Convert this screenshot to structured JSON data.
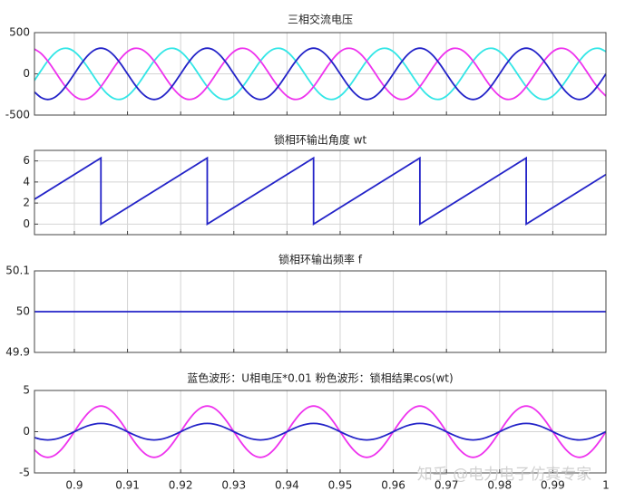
{
  "chart_data": [
    {
      "type": "line",
      "title": "三相交流电压",
      "x": [
        0.8925,
        0.89375,
        0.895,
        0.89625,
        0.8975,
        0.89875,
        0.9,
        0.90125,
        0.9025,
        0.90375,
        0.905,
        0.90625,
        0.9075,
        0.90875,
        0.91,
        0.91125,
        0.9125,
        0.91375,
        0.915,
        0.91625,
        0.9175,
        0.91875,
        0.92,
        0.92125,
        0.9225,
        0.92375,
        0.925,
        0.92625,
        0.9275,
        0.92875,
        0.93,
        0.93125,
        0.9325,
        0.93375,
        0.935,
        0.93625,
        0.9375,
        0.93875,
        0.94,
        0.94125,
        0.9425,
        0.94375,
        0.945,
        0.94625,
        0.9475,
        0.94875,
        0.95,
        0.95125,
        0.9525,
        0.95375,
        0.955,
        0.95625,
        0.9575,
        0.95875,
        0.96,
        0.96125,
        0.9625,
        0.96375,
        0.965,
        0.96625,
        0.9675,
        0.96875,
        0.97,
        0.97125,
        0.9725,
        0.97375,
        0.975,
        0.97625,
        0.9775,
        0.97875,
        0.98,
        0.98125,
        0.9825,
        0.98375,
        0.985,
        0.98625,
        0.9875,
        0.98875,
        0.99,
        0.99125,
        0.9925,
        0.99375,
        0.995,
        0.99625,
        0.9975,
        0.99875,
        1
      ],
      "series": [
        {
          "color": "#33e6e6",
          "values": [
            -80.5,
            40.6,
            155.5,
            246.7,
            300.4,
            308.3,
            269.3,
            189.3,
            80.5,
            -40.6,
            -155.5,
            -246.7,
            -300.4,
            -308.3,
            -269.3,
            -189.3,
            -80.5,
            40.6,
            155.5,
            246.7,
            300.4,
            308.3,
            269.3,
            189.3,
            80.5,
            -40.6,
            -155.5,
            -246.7,
            -300.4,
            -308.3,
            -269.3,
            -189.3,
            -80.5,
            40.6,
            155.5,
            246.7,
            300.4,
            308.3,
            269.3,
            189.3,
            80.5,
            -40.6,
            -155.5,
            -246.7,
            -300.4,
            -308.3,
            -269.3,
            -189.3,
            -80.5,
            40.6,
            155.5,
            246.7,
            300.4,
            308.3,
            269.3,
            189.3,
            80.5,
            -40.6,
            -155.5,
            -246.7,
            -300.4,
            -308.3,
            -269.3,
            -189.3,
            -80.5,
            40.6,
            155.5,
            246.7,
            300.4,
            308.3,
            269.3,
            189.3,
            80.5,
            -40.6,
            -155.5,
            -246.7,
            -300.4,
            -308.3,
            -269.3,
            -189.3,
            -80.5,
            40.6,
            155.5,
            246.7,
            300.4,
            308.3,
            269.3
          ]
        },
        {
          "color": "#ee33ee",
          "values": [
            300.4,
            246.7,
            155.5,
            40.6,
            -80.5,
            -189.3,
            -269.3,
            -308.3,
            -300.4,
            -246.7,
            -155.5,
            -40.6,
            80.5,
            189.3,
            269.3,
            308.3,
            300.4,
            246.7,
            155.5,
            40.6,
            -80.5,
            -189.3,
            -269.3,
            -308.3,
            -300.4,
            -246.7,
            -155.5,
            -40.6,
            80.5,
            189.3,
            269.3,
            308.3,
            300.4,
            246.7,
            155.5,
            40.6,
            -80.5,
            -189.3,
            -269.3,
            -308.3,
            -300.4,
            -246.7,
            -155.5,
            -40.6,
            80.5,
            189.3,
            269.3,
            308.3,
            300.4,
            246.7,
            155.5,
            40.6,
            -80.5,
            -189.3,
            -269.3,
            -308.3,
            -300.4,
            -246.7,
            -155.5,
            -40.6,
            80.5,
            189.3,
            269.3,
            308.3,
            300.4,
            246.7,
            155.5,
            40.6,
            -80.5,
            -189.3,
            -269.3,
            -308.3,
            -300.4,
            -246.7,
            -155.5,
            -40.6,
            80.5,
            189.3,
            269.3,
            308.3,
            300.4,
            246.7,
            155.5,
            40.6,
            -80.5,
            -189.3,
            -269.3
          ]
        },
        {
          "color": "#2323c8",
          "values": [
            -219.9,
            -287.3,
            -311,
            -287.3,
            -219.9,
            -119,
            0,
            119,
            219.9,
            287.3,
            311,
            287.3,
            219.9,
            119,
            0,
            -119,
            -219.9,
            -287.3,
            -311,
            -287.3,
            -219.9,
            -119,
            0,
            119,
            219.9,
            287.3,
            311,
            287.3,
            219.9,
            119,
            0,
            -119,
            -219.9,
            -287.3,
            -311,
            -287.3,
            -219.9,
            -119,
            0,
            119,
            219.9,
            287.3,
            311,
            287.3,
            219.9,
            119,
            0,
            -119,
            -219.9,
            -287.3,
            -311,
            -287.3,
            -219.9,
            -119,
            0,
            119,
            219.9,
            287.3,
            311,
            287.3,
            219.9,
            119,
            0,
            -119,
            -219.9,
            -287.3,
            -311,
            -287.3,
            -219.9,
            -119,
            0,
            119,
            219.9,
            287.3,
            311,
            287.3,
            219.9,
            119,
            0,
            -119,
            -219.9,
            -287.3,
            -311,
            -287.3,
            -219.9,
            -119,
            0
          ]
        }
      ],
      "xlim": [
        0.8925,
        1
      ],
      "ylim": [
        -500,
        500
      ],
      "xticks": [
        0.9,
        0.91,
        0.92,
        0.93,
        0.94,
        0.95,
        0.96,
        0.97,
        0.98,
        0.99,
        1
      ],
      "yticks": [
        -500,
        0,
        500
      ],
      "grid": true,
      "xticklabels": false
    },
    {
      "type": "line",
      "title": "锁相环输出角度 wt",
      "x": [
        0.8925,
        0.905,
        0.905,
        0.925,
        0.925,
        0.945,
        0.945,
        0.965,
        0.965,
        0.985,
        0.985,
        1
      ],
      "series": [
        {
          "color": "#2323c8",
          "values": [
            2.356,
            6.283,
            0,
            6.283,
            0,
            6.283,
            0,
            6.283,
            0,
            6.283,
            0,
            4.712
          ]
        }
      ],
      "xlim": [
        0.8925,
        1
      ],
      "ylim": [
        -1,
        7
      ],
      "xticks": [
        0.9,
        0.91,
        0.92,
        0.93,
        0.94,
        0.95,
        0.96,
        0.97,
        0.98,
        0.99,
        1
      ],
      "yticks": [
        0,
        2,
        4,
        6
      ],
      "grid": true,
      "xticklabels": false
    },
    {
      "type": "line",
      "title": "锁相环输出频率 f",
      "x": [
        0.8925,
        1
      ],
      "series": [
        {
          "color": "#2323c8",
          "values": [
            50,
            50
          ]
        }
      ],
      "xlim": [
        0.8925,
        1
      ],
      "ylim": [
        49.9,
        50.1
      ],
      "xticks": [
        0.9,
        0.91,
        0.92,
        0.93,
        0.94,
        0.95,
        0.96,
        0.97,
        0.98,
        0.99,
        1
      ],
      "yticks": [
        49.9,
        50,
        50.1
      ],
      "grid": true,
      "xticklabels": false
    },
    {
      "type": "line",
      "title": "蓝色波形：U相电压*0.01      粉色波形：锁相结果cos(wt)",
      "x": [
        0.8925,
        0.89375,
        0.895,
        0.89625,
        0.8975,
        0.89875,
        0.9,
        0.90125,
        0.9025,
        0.90375,
        0.905,
        0.90625,
        0.9075,
        0.90875,
        0.91,
        0.91125,
        0.9125,
        0.91375,
        0.915,
        0.91625,
        0.9175,
        0.91875,
        0.92,
        0.92125,
        0.9225,
        0.92375,
        0.925,
        0.92625,
        0.9275,
        0.92875,
        0.93,
        0.93125,
        0.9325,
        0.93375,
        0.935,
        0.93625,
        0.9375,
        0.93875,
        0.94,
        0.94125,
        0.9425,
        0.94375,
        0.945,
        0.94625,
        0.9475,
        0.94875,
        0.95,
        0.95125,
        0.9525,
        0.95375,
        0.955,
        0.95625,
        0.9575,
        0.95875,
        0.96,
        0.96125,
        0.9625,
        0.96375,
        0.965,
        0.96625,
        0.9675,
        0.96875,
        0.97,
        0.97125,
        0.9725,
        0.97375,
        0.975,
        0.97625,
        0.9775,
        0.97875,
        0.98,
        0.98125,
        0.9825,
        0.98375,
        0.985,
        0.98625,
        0.9875,
        0.98875,
        0.99,
        0.99125,
        0.9925,
        0.99375,
        0.995,
        0.99625,
        0.9975,
        0.99875,
        1
      ],
      "series": [
        {
          "color": "#ee33ee",
          "values": [
            -2.199,
            -2.873,
            -3.11,
            -2.873,
            -2.199,
            -1.19,
            0,
            1.19,
            2.199,
            2.873,
            3.11,
            2.873,
            2.199,
            1.19,
            0,
            -1.19,
            -2.199,
            -2.873,
            -3.11,
            -2.873,
            -2.199,
            -1.19,
            0,
            1.19,
            2.199,
            2.873,
            3.11,
            2.873,
            2.199,
            1.19,
            0,
            -1.19,
            -2.199,
            -2.873,
            -3.11,
            -2.873,
            -2.199,
            -1.19,
            0,
            1.19,
            2.199,
            2.873,
            3.11,
            2.873,
            2.199,
            1.19,
            0,
            -1.19,
            -2.199,
            -2.873,
            -3.11,
            -2.873,
            -2.199,
            -1.19,
            0,
            1.19,
            2.199,
            2.873,
            3.11,
            2.873,
            2.199,
            1.19,
            0,
            -1.19,
            -2.199,
            -2.873,
            -3.11,
            -2.873,
            -2.199,
            -1.19,
            0,
            1.19,
            2.199,
            2.873,
            3.11,
            2.873,
            2.199,
            1.19,
            0,
            -1.19,
            -2.199,
            -2.873,
            -3.11,
            -2.873,
            -2.199,
            -1.19,
            0
          ]
        },
        {
          "color": "#2323c8",
          "values": [
            -0.707,
            -0.924,
            -1,
            -0.924,
            -0.707,
            -0.383,
            0,
            0.383,
            0.707,
            0.924,
            1,
            0.924,
            0.707,
            0.383,
            0,
            -0.383,
            -0.707,
            -0.924,
            -1,
            -0.924,
            -0.707,
            -0.383,
            0,
            0.383,
            0.707,
            0.924,
            1,
            0.924,
            0.707,
            0.383,
            0,
            -0.383,
            -0.707,
            -0.924,
            -1,
            -0.924,
            -0.707,
            -0.383,
            0,
            0.383,
            0.707,
            0.924,
            1,
            0.924,
            0.707,
            0.383,
            0,
            -0.383,
            -0.707,
            -0.924,
            -1,
            -0.924,
            -0.707,
            -0.383,
            0,
            0.383,
            0.707,
            0.924,
            1,
            0.924,
            0.707,
            0.383,
            0,
            -0.383,
            -0.707,
            -0.924,
            -1,
            -0.924,
            -0.707,
            -0.383,
            0,
            0.383,
            0.707,
            0.924,
            1,
            0.924,
            0.707,
            0.383,
            0,
            -0.383,
            -0.707,
            -0.924,
            -1,
            -0.924,
            -0.707,
            -0.383,
            0
          ]
        }
      ],
      "xlim": [
        0.8925,
        1
      ],
      "ylim": [
        -5,
        5
      ],
      "xticks": [
        0.9,
        0.91,
        0.92,
        0.93,
        0.94,
        0.95,
        0.96,
        0.97,
        0.98,
        0.99,
        1
      ],
      "yticks": [
        -5,
        0,
        5
      ],
      "grid": true,
      "xticklabels": true
    }
  ],
  "watermark": "知乎 @电力电子仿真专家"
}
